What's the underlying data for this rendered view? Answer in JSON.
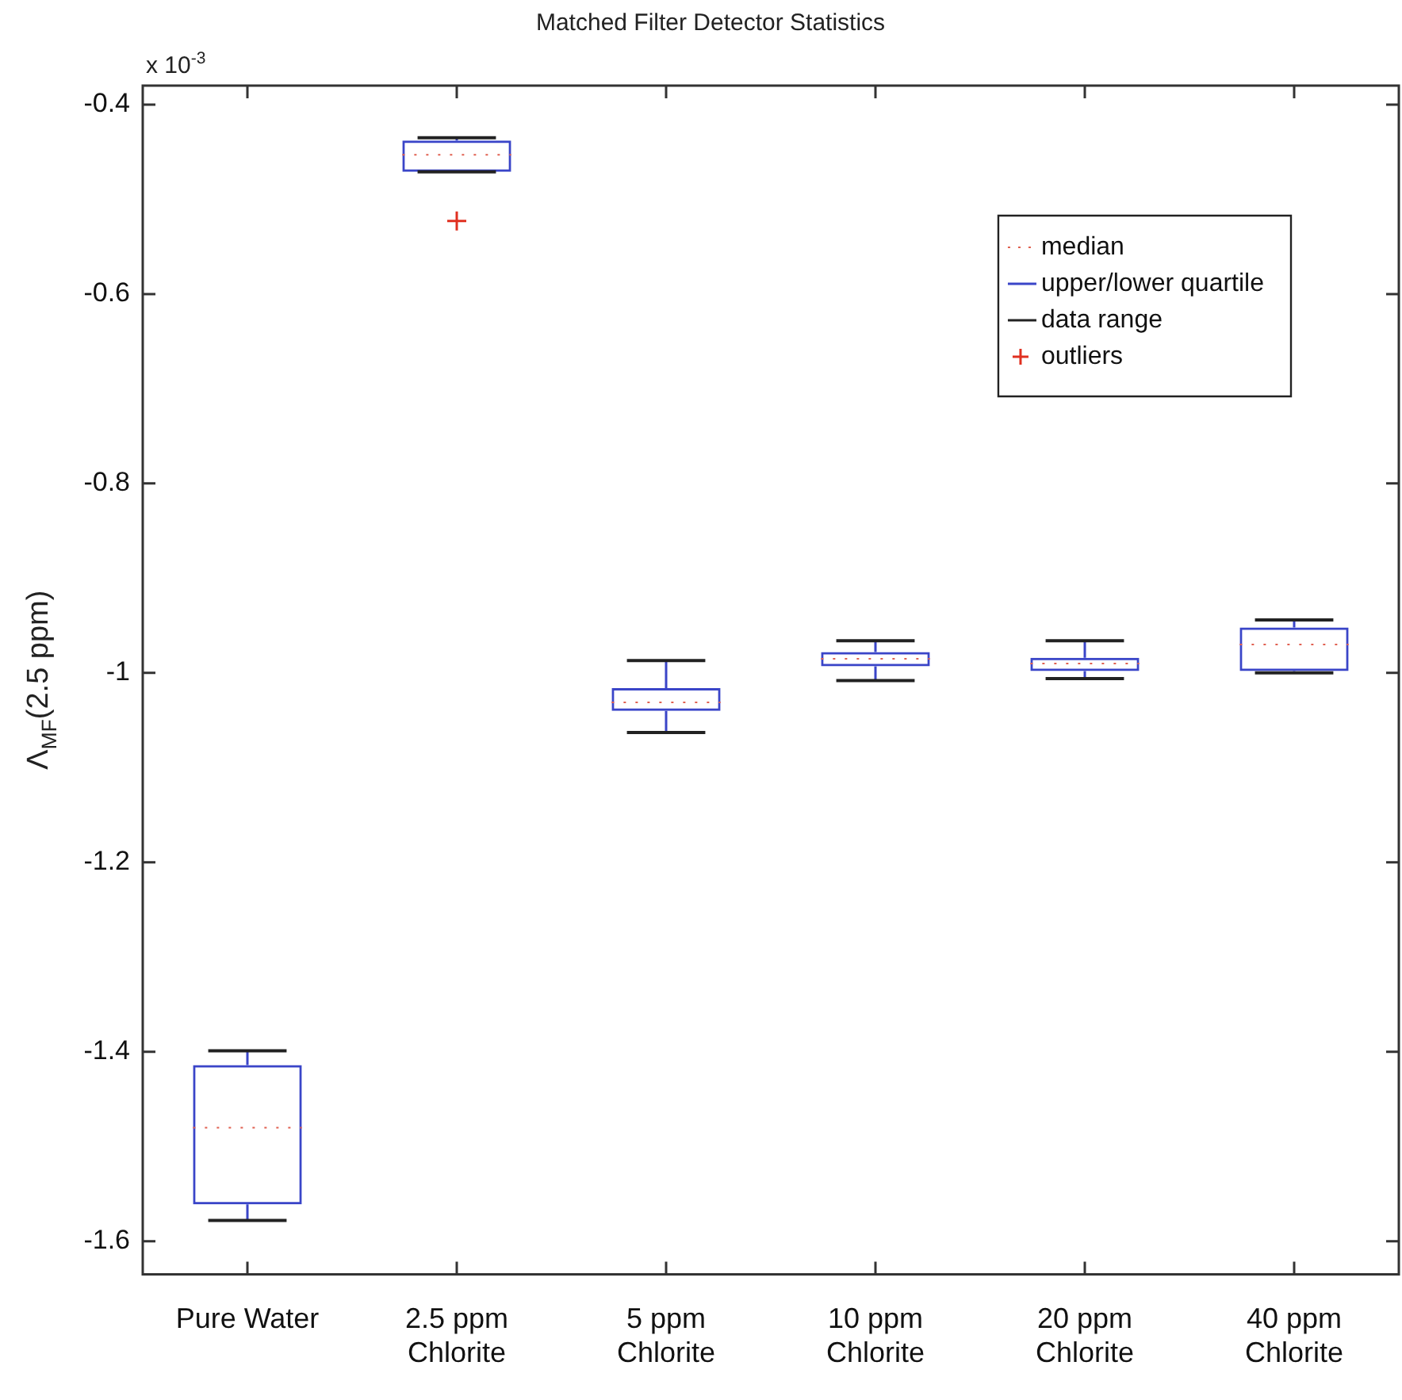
{
  "chart_data": {
    "type": "box",
    "title": "Matched Filter Detector Statistics",
    "ylabel": "Λ$_{MF}$(2.5 ppm)",
    "annotations": [
      "x 10$^{-3}$",
      "median",
      "upper/lower quartile",
      "data range",
      "outliers"
    ],
    "categories": [
      "Pure Water",
      "2.5 ppm\nChlorite",
      "5 ppm\nChlorite",
      "10 ppm\nChlorite",
      "20 ppm\nChlorite",
      "40 ppm\nChlorite"
    ],
    "boxes": [
      {
        "low": -1.578,
        "q1": -1.561,
        "median": -1.48,
        "q3": -1.414,
        "high": -1.399
      },
      {
        "low": -0.471,
        "q1": -0.471,
        "median": -0.453,
        "q3": -0.438,
        "high": -0.435,
        "outliers": [
          -0.523
        ]
      },
      {
        "low": -1.063,
        "q1": -1.04,
        "median": -1.031,
        "q3": -1.016,
        "high": -0.987
      },
      {
        "low": -1.008,
        "q1": -0.993,
        "median": -0.985,
        "q3": -0.978,
        "high": -0.966
      },
      {
        "low": -1.006,
        "q1": -0.998,
        "median": -0.99,
        "q3": -0.984,
        "high": -0.966
      },
      {
        "low": -1.0,
        "q1": -0.998,
        "median": -0.97,
        "q3": -0.952,
        "high": -0.944
      }
    ],
    "ylim": [
      -1.635,
      -0.38
    ],
    "yticks": [
      -0.4,
      -0.6,
      -0.8,
      {
        "value": -1,
        "label": "-1"
      },
      -1.2,
      -1.4,
      -1.6
    ]
  }
}
